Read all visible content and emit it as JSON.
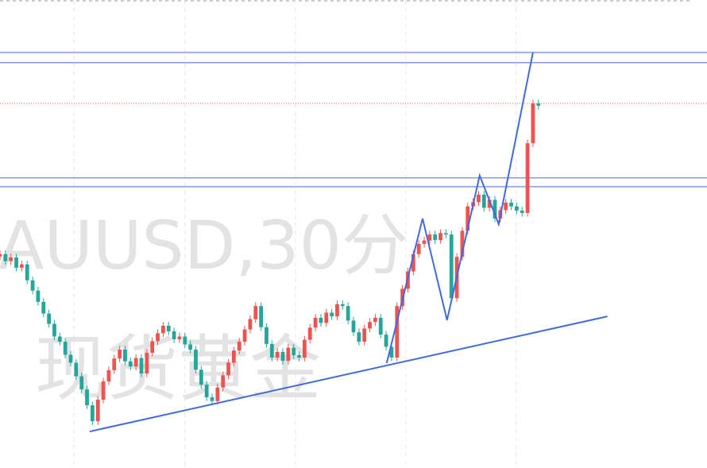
{
  "chart_data": {
    "type": "candlestick",
    "watermark": [
      "AUUSD,30分",
      "现货黄金"
    ],
    "xlim": [
      0,
      130
    ],
    "ylim": [
      0,
      100
    ],
    "up_color": "#ef5350",
    "down_color": "#26a69a",
    "line_color": "#4169e1",
    "xgrid": [
      13.6,
      34.0,
      54.3,
      74.6,
      94.9
    ],
    "open": [
      45.2,
      45.7,
      44.2,
      45.0,
      42.8,
      43.5,
      40.1,
      37.9,
      35.5,
      33.0,
      30.8,
      28.1,
      27.0,
      24.2,
      22.5,
      19.6,
      16.8,
      13.4,
      10.0,
      14.6,
      18.5,
      20.9,
      23.4,
      25.3,
      22.8,
      21.7,
      23.5,
      20.2,
      24.6,
      27.1,
      28.8,
      30.4,
      29.2,
      27.5,
      28.1,
      26.4,
      25.3,
      21.0,
      17.8,
      15.1,
      14.3,
      17.2,
      19.8,
      22.5,
      25.1,
      27.0,
      29.6,
      31.8,
      34.6,
      30.1,
      26.5,
      23.6,
      24.8,
      22.9,
      25.7,
      24.1,
      23.6,
      27.4,
      30.0,
      32.1,
      31.0,
      33.2,
      32.4,
      35.0,
      34.6,
      31.5,
      29.0,
      27.0,
      29.8,
      31.2,
      32.1,
      28.5,
      25.9,
      23.6,
      34.6,
      38.3,
      42.0,
      45.7,
      47.9,
      48.6,
      49.9,
      48.7,
      50.2,
      49.9,
      36.3,
      45.1,
      50.7,
      55.9,
      56.8,
      58.4,
      55.6,
      57.3,
      53.3,
      55.1,
      56.7,
      55.9,
      55.0,
      54.5,
      69.4,
      77.9
    ],
    "high": [
      46.5,
      46.5,
      45.8,
      45.8,
      44.3,
      44.3,
      40.9,
      38.7,
      36.3,
      33.8,
      31.6,
      28.9,
      27.8,
      25.0,
      23.3,
      20.4,
      17.6,
      14.2,
      15.4,
      19.3,
      21.7,
      24.2,
      26.1,
      26.1,
      23.6,
      24.3,
      24.3,
      25.4,
      27.9,
      29.6,
      31.2,
      31.2,
      30.0,
      28.9,
      28.9,
      27.2,
      26.1,
      21.8,
      18.6,
      15.9,
      18.0,
      20.6,
      23.3,
      25.9,
      27.8,
      30.4,
      32.6,
      35.4,
      35.4,
      30.9,
      27.3,
      25.6,
      25.6,
      26.5,
      26.5,
      24.9,
      28.2,
      30.8,
      32.9,
      32.9,
      34.0,
      34.0,
      35.8,
      35.8,
      35.4,
      32.3,
      29.8,
      30.6,
      32.0,
      32.9,
      32.9,
      29.3,
      26.7,
      35.4,
      39.1,
      42.8,
      46.5,
      48.7,
      49.4,
      50.7,
      50.7,
      51.0,
      51.0,
      50.7,
      45.9,
      51.5,
      56.7,
      57.6,
      59.2,
      59.2,
      58.1,
      58.1,
      55.9,
      57.5,
      57.5,
      56.7,
      55.8,
      70.2,
      78.7,
      78.7
    ],
    "low": [
      44.4,
      43.4,
      43.4,
      42.0,
      42.0,
      39.3,
      37.1,
      34.7,
      32.2,
      30.0,
      27.3,
      26.2,
      23.4,
      21.7,
      18.8,
      16.0,
      12.6,
      9.2,
      9.2,
      13.8,
      17.7,
      20.1,
      22.6,
      22.0,
      20.9,
      20.9,
      19.4,
      19.4,
      23.8,
      26.3,
      28.0,
      28.4,
      26.7,
      26.7,
      25.6,
      24.5,
      20.2,
      17.0,
      14.3,
      13.5,
      13.5,
      16.4,
      19.0,
      21.7,
      24.3,
      26.2,
      28.8,
      31.0,
      29.3,
      25.7,
      22.8,
      22.8,
      22.1,
      22.1,
      23.3,
      22.8,
      22.8,
      26.6,
      29.2,
      30.2,
      30.2,
      31.6,
      31.6,
      33.8,
      30.7,
      28.2,
      26.2,
      26.2,
      29.0,
      30.4,
      27.7,
      25.1,
      22.8,
      22.8,
      33.8,
      37.5,
      41.2,
      44.9,
      47.1,
      47.8,
      47.9,
      47.9,
      49.1,
      35.5,
      35.5,
      44.3,
      49.9,
      55.1,
      56.0,
      54.8,
      54.8,
      52.5,
      52.5,
      54.3,
      55.1,
      54.2,
      53.7,
      53.7,
      68.6,
      76.6
    ],
    "close": [
      45.7,
      44.2,
      45.0,
      42.8,
      43.5,
      40.1,
      37.9,
      35.5,
      33.0,
      30.8,
      28.1,
      27.0,
      24.2,
      22.5,
      19.6,
      16.8,
      13.4,
      10.0,
      14.6,
      18.5,
      20.9,
      23.4,
      25.3,
      22.8,
      21.7,
      23.5,
      20.2,
      24.6,
      27.1,
      28.8,
      30.4,
      29.2,
      27.5,
      28.1,
      26.4,
      25.3,
      21.0,
      17.8,
      15.1,
      14.3,
      17.2,
      19.8,
      22.5,
      25.1,
      27.0,
      29.6,
      31.8,
      34.6,
      30.1,
      26.5,
      23.6,
      24.8,
      22.9,
      25.7,
      24.1,
      23.6,
      27.4,
      30.0,
      32.1,
      31.0,
      33.2,
      32.4,
      35.0,
      34.6,
      31.5,
      29.0,
      27.0,
      29.8,
      31.2,
      32.1,
      28.5,
      25.9,
      23.6,
      34.6,
      38.3,
      42.0,
      45.7,
      47.9,
      48.6,
      49.9,
      48.7,
      50.2,
      49.9,
      36.3,
      45.1,
      50.7,
      55.9,
      56.8,
      58.4,
      55.6,
      57.3,
      53.3,
      55.1,
      56.7,
      55.9,
      55.0,
      54.5,
      69.4,
      77.9,
      77.4
    ],
    "hlines": [
      {
        "value": 88.8,
        "color": "#4169e1"
      },
      {
        "value": 86.6,
        "color": "#4169e1"
      },
      {
        "value": 62.0,
        "color": "#4169e1"
      },
      {
        "value": 60.1,
        "color": "#4169e1"
      },
      {
        "value": 77.9,
        "color": "#e57373",
        "dotted": true
      }
    ],
    "trendline": {
      "x": [
        16.5,
        111.7
      ],
      "y": [
        7.8,
        32.4
      ]
    },
    "zigzag": {
      "x": [
        71.1,
        77.7,
        82.2,
        88.2,
        91.7,
        98.0
      ],
      "y": [
        22.4,
        53.3,
        31.6,
        62.5,
        52.1,
        88.8
      ]
    }
  }
}
